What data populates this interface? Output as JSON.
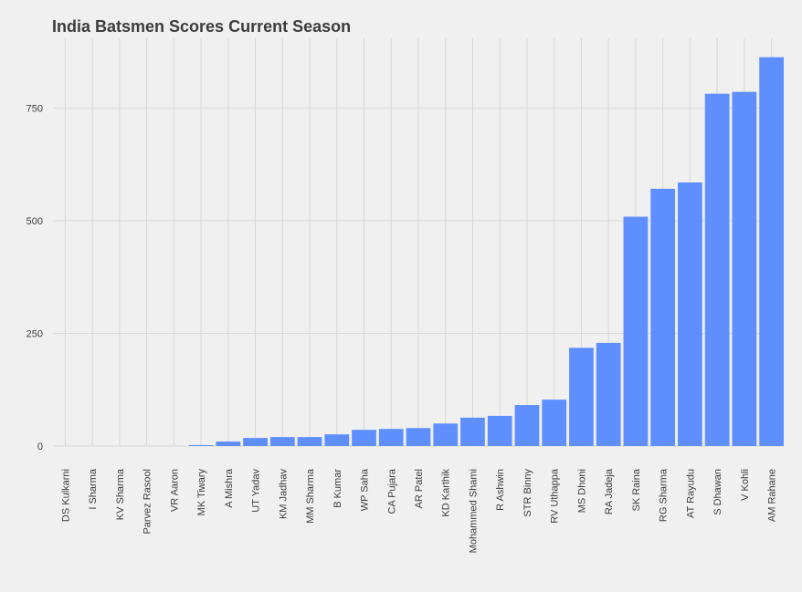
{
  "chart_data": {
    "type": "bar",
    "title": "India Batsmen Scores Current Season",
    "xlabel": "",
    "ylabel": "",
    "categories": [
      "DS Kulkarni",
      "I Sharma",
      "KV Sharma",
      "Parvez Rasool",
      "VR Aaron",
      "MK Tiwary",
      "A Mishra",
      "UT Yadav",
      "KM Jadhav",
      "MM Sharma",
      "B Kumar",
      "WP Saha",
      "CA Pujara",
      "AR Patel",
      "KD Karthik",
      "Mohammed Shami",
      "R Ashwin",
      "STR Binny",
      "RV Uthappa",
      "MS Dhoni",
      "RA Jadeja",
      "SK Raina",
      "RG Sharma",
      "AT Rayudu",
      "S Dhawan",
      "V Kohli",
      "AM Rahane"
    ],
    "values": [
      0,
      0,
      0,
      0,
      0,
      2,
      10,
      18,
      20,
      20,
      26,
      36,
      38,
      40,
      50,
      63,
      67,
      91,
      103,
      218,
      229,
      509,
      571,
      585,
      782,
      786,
      863
    ],
    "ylim": [
      0,
      880
    ],
    "yticks": [
      0,
      250,
      500,
      750
    ],
    "grid": true,
    "bar_color": "#5f8fff",
    "background": "#f0f0f0",
    "grid_color": "#d8d8d8"
  }
}
